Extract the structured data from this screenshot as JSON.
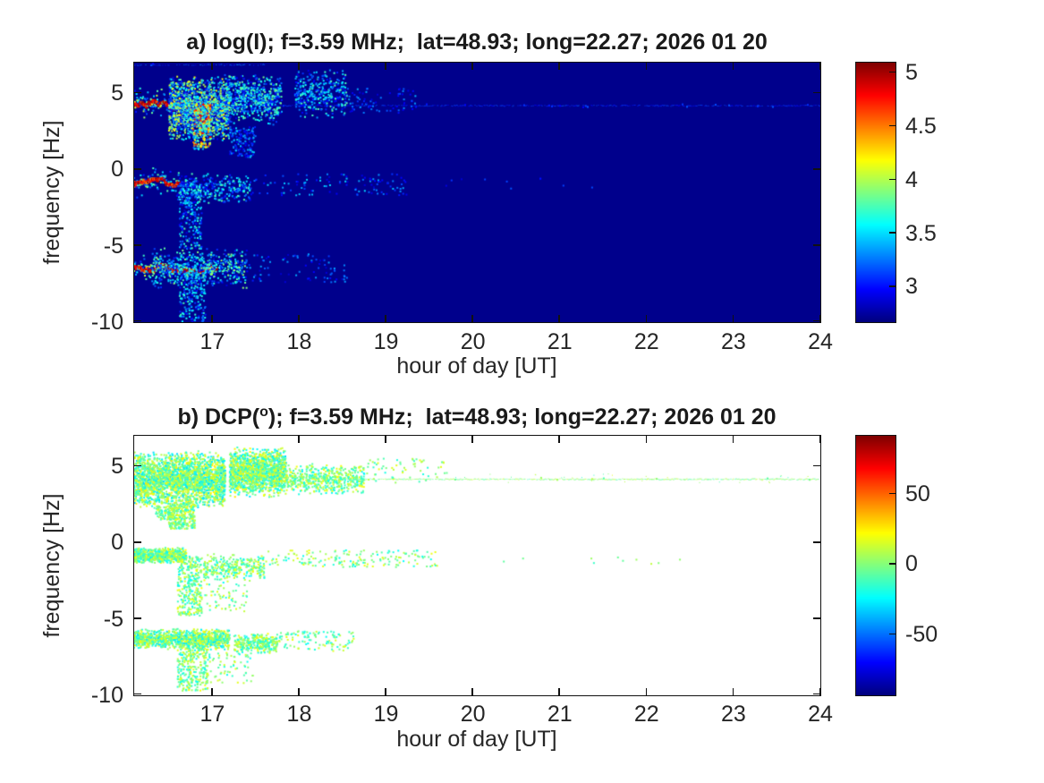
{
  "figure": {
    "background_color": "#ffffff",
    "text_color": "#262626",
    "colormap_name": "jet"
  },
  "chart_data": [
    {
      "panel": "a",
      "type": "heatmap",
      "title": "a) log(I); f=3.59 MHz;  lat=48.93; long=22.27; 2026 01 20",
      "xlabel": "hour of day [UT]",
      "ylabel": "frequency [Hz]",
      "xlim": [
        16.1,
        24
      ],
      "ylim": [
        -10,
        7
      ],
      "xticks": [
        17,
        18,
        19,
        20,
        21,
        22,
        23,
        24
      ],
      "yticks": [
        5,
        0,
        -5,
        -10
      ],
      "grid": false,
      "legend": "colorbar-right",
      "colormap": "jet",
      "clim": [
        2.67,
        5.09
      ],
      "colorbar_ticks": [
        5,
        4.5,
        4,
        3.5,
        3
      ],
      "bg_value": 2.7,
      "bands": [
        {
          "name": "upper-sideband",
          "center_hz": 4.2,
          "features": [
            {
              "kind": "line",
              "t": [
                16.1,
                24
              ],
              "f": [
                4.18,
                4.18
              ],
              "v": [
                2.95,
                3.2
              ],
              "gap": 0.35,
              "size": 1
            },
            {
              "kind": "line",
              "t": [
                16.1,
                17.6
              ],
              "f": [
                6.85,
                6.85
              ],
              "v": [
                2.95,
                3.35
              ],
              "gap": 0.5,
              "size": 1
            },
            {
              "kind": "streak",
              "t": [
                16.1,
                16.8
              ],
              "f": [
                3.9,
                4.6
              ],
              "v": [
                4.3,
                5.05
              ],
              "halo": [
                3.0,
                4.2
              ],
              "size": 3
            },
            {
              "kind": "cloud",
              "t": [
                16.5,
                17.2
              ],
              "f": [
                1.8,
                6.2
              ],
              "v": [
                2.85,
                4.25
              ],
              "n": 1600,
              "size": 2
            },
            {
              "kind": "trail",
              "t": [
                16.78,
                16.98
              ],
              "f": [
                1.3,
                4.4
              ],
              "v": [
                3.2,
                4.9
              ],
              "n": 260,
              "size": 2
            },
            {
              "kind": "cloud",
              "t": [
                17.15,
                17.8
              ],
              "f": [
                2.9,
                6.3
              ],
              "v": [
                2.85,
                3.9
              ],
              "n": 650,
              "size": 2
            },
            {
              "kind": "trail",
              "t": [
                17.2,
                17.5
              ],
              "f": [
                0.8,
                2.8
              ],
              "v": [
                2.85,
                3.5
              ],
              "n": 130,
              "size": 2
            },
            {
              "kind": "cloud",
              "t": [
                17.95,
                18.55
              ],
              "f": [
                3.3,
                6.6
              ],
              "v": [
                2.85,
                3.8
              ],
              "n": 380,
              "size": 2
            },
            {
              "kind": "specks",
              "t": [
                18.55,
                19.4
              ],
              "f": [
                3.7,
                5.3
              ],
              "v": [
                2.85,
                3.4
              ],
              "n": 70,
              "size": 2
            }
          ]
        },
        {
          "name": "carrier-sideband",
          "center_hz": -0.9,
          "features": [
            {
              "kind": "streak",
              "t": [
                16.1,
                16.62
              ],
              "f": [
                -1.1,
                -0.6
              ],
              "v": [
                4.2,
                5.0
              ],
              "halo": [
                3.0,
                4.0
              ],
              "size": 3
            },
            {
              "kind": "cloud",
              "t": [
                16.6,
                17.45
              ],
              "f": [
                -2.4,
                -0.2
              ],
              "v": [
                2.85,
                3.8
              ],
              "n": 330,
              "size": 2
            },
            {
              "kind": "trail",
              "t": [
                16.62,
                16.88
              ],
              "f": [
                -5.2,
                -0.9
              ],
              "v": [
                2.85,
                3.8
              ],
              "n": 240,
              "size": 2
            },
            {
              "kind": "specks",
              "t": [
                17.45,
                19.25
              ],
              "f": [
                -1.7,
                -0.3
              ],
              "v": [
                2.85,
                3.5
              ],
              "n": 110,
              "size": 2
            },
            {
              "kind": "specks",
              "t": [
                19.3,
                21.4
              ],
              "f": [
                -1.3,
                -0.6
              ],
              "v": [
                2.85,
                3.2
              ],
              "n": 10,
              "size": 2
            }
          ]
        },
        {
          "name": "lower-sideband",
          "center_hz": -6.3,
          "features": [
            {
              "kind": "streak",
              "t": [
                16.1,
                17.05
              ],
              "f": [
                -6.7,
                -5.9
              ],
              "v": [
                4.2,
                5.05
              ],
              "halo": [
                3.0,
                4.1
              ],
              "size": 3
            },
            {
              "kind": "cloud",
              "t": [
                16.3,
                17.4
              ],
              "f": [
                -7.8,
                -5.1
              ],
              "v": [
                2.85,
                3.95
              ],
              "n": 520,
              "size": 2
            },
            {
              "kind": "trail",
              "t": [
                16.62,
                16.92
              ],
              "f": [
                -10,
                -6.6
              ],
              "v": [
                2.85,
                3.75
              ],
              "n": 220,
              "size": 2
            },
            {
              "kind": "specks",
              "t": [
                17.4,
                18.55
              ],
              "f": [
                -7.4,
                -5.5
              ],
              "v": [
                2.85,
                3.4
              ],
              "n": 80,
              "size": 2
            }
          ]
        }
      ]
    },
    {
      "panel": "b",
      "type": "scatter",
      "title": "b) DCP(°); f=3.59 MHz;  lat=48.93; long=22.27; 2026 01 20",
      "title_parts": [
        "b) DCP(",
        "o",
        "); f=3.59 MHz;  lat=48.93; long=22.27; 2026 01 20"
      ],
      "xlabel": "hour of day [UT]",
      "ylabel": "frequency [Hz]",
      "xlim": [
        16.1,
        24
      ],
      "ylim": [
        -10,
        7
      ],
      "xticks": [
        17,
        18,
        19,
        20,
        21,
        22,
        23,
        24
      ],
      "yticks": [
        5,
        0,
        -5,
        -10
      ],
      "grid": false,
      "legend": "colorbar-right",
      "colormap": "jet",
      "clim": [
        -93,
        91
      ],
      "colorbar_ticks": [
        50,
        0,
        -50
      ],
      "bg_color": "#ffffff",
      "bands": [
        {
          "name": "upper-sideband",
          "center_hz": 4.15,
          "features": [
            {
              "kind": "line",
              "t": [
                18.55,
                24
              ],
              "f": [
                4.15,
                4.15
              ],
              "v": [
                -12,
                12
              ],
              "gap": 0.15,
              "size": 1
            },
            {
              "kind": "cloud",
              "t": [
                16.1,
                17.15
              ],
              "f": [
                2.2,
                6.0
              ],
              "v": [
                -32,
                26
              ],
              "n": 2600,
              "size": 2
            },
            {
              "kind": "trail",
              "t": [
                16.5,
                16.8
              ],
              "f": [
                0.9,
                2.6
              ],
              "v": [
                -25,
                22
              ],
              "n": 300,
              "size": 2
            },
            {
              "kind": "trail",
              "t": [
                16.35,
                16.55
              ],
              "f": [
                1.5,
                2.4
              ],
              "v": [
                -22,
                20
              ],
              "n": 90,
              "size": 2
            },
            {
              "kind": "cloud",
              "t": [
                17.2,
                17.85
              ],
              "f": [
                2.9,
                6.3
              ],
              "v": [
                -30,
                26
              ],
              "n": 1500,
              "size": 2
            },
            {
              "kind": "cloud",
              "t": [
                17.85,
                18.75
              ],
              "f": [
                3.1,
                5.2
              ],
              "v": [
                -26,
                22
              ],
              "n": 520,
              "size": 2
            },
            {
              "kind": "specks",
              "t": [
                18.75,
                19.7
              ],
              "f": [
                3.9,
                5.5
              ],
              "v": [
                -20,
                20
              ],
              "n": 60,
              "size": 2
            },
            {
              "kind": "specks",
              "t": [
                19.7,
                23.9
              ],
              "f": [
                3.9,
                4.5
              ],
              "v": [
                -18,
                18
              ],
              "n": 40,
              "size": 1
            }
          ]
        },
        {
          "name": "carrier-sideband",
          "center_hz": -0.9,
          "features": [
            {
              "kind": "cloud",
              "t": [
                16.1,
                16.7
              ],
              "f": [
                -1.4,
                -0.3
              ],
              "v": [
                -28,
                22
              ],
              "n": 700,
              "size": 2
            },
            {
              "kind": "trail",
              "t": [
                16.6,
                16.88
              ],
              "f": [
                -4.8,
                -0.9
              ],
              "v": [
                -26,
                22
              ],
              "n": 330,
              "size": 2
            },
            {
              "kind": "cloud",
              "t": [
                16.9,
                17.6
              ],
              "f": [
                -2.6,
                -0.7
              ],
              "v": [
                -26,
                22
              ],
              "n": 300,
              "size": 2
            },
            {
              "kind": "specks",
              "t": [
                16.9,
                17.4
              ],
              "f": [
                -4.5,
                -2.6
              ],
              "v": [
                -24,
                20
              ],
              "n": 60,
              "size": 2
            },
            {
              "kind": "specks",
              "t": [
                17.6,
                19.6
              ],
              "f": [
                -1.6,
                -0.5
              ],
              "v": [
                -24,
                20
              ],
              "n": 170,
              "size": 2
            },
            {
              "kind": "specks",
              "t": [
                20.2,
                22.5
              ],
              "f": [
                -1.4,
                -0.8
              ],
              "v": [
                -20,
                18
              ],
              "n": 10,
              "size": 2
            }
          ]
        },
        {
          "name": "lower-sideband",
          "center_hz": -6.3,
          "features": [
            {
              "kind": "cloud",
              "t": [
                16.1,
                17.2
              ],
              "f": [
                -7.0,
                -5.6
              ],
              "v": [
                -30,
                24
              ],
              "n": 1100,
              "size": 2
            },
            {
              "kind": "trail",
              "t": [
                16.6,
                16.95
              ],
              "f": [
                -9.7,
                -6.6
              ],
              "v": [
                -26,
                22
              ],
              "n": 300,
              "size": 2
            },
            {
              "kind": "cloud",
              "t": [
                17.25,
                17.75
              ],
              "f": [
                -7.3,
                -5.9
              ],
              "v": [
                -26,
                22
              ],
              "n": 300,
              "size": 2
            },
            {
              "kind": "specks",
              "t": [
                17.75,
                18.65
              ],
              "f": [
                -7.1,
                -5.8
              ],
              "v": [
                -24,
                20
              ],
              "n": 110,
              "size": 2
            },
            {
              "kind": "specks",
              "t": [
                16.9,
                17.5
              ],
              "f": [
                -9.2,
                -7.2
              ],
              "v": [
                -24,
                20
              ],
              "n": 70,
              "size": 2
            }
          ]
        }
      ]
    }
  ]
}
